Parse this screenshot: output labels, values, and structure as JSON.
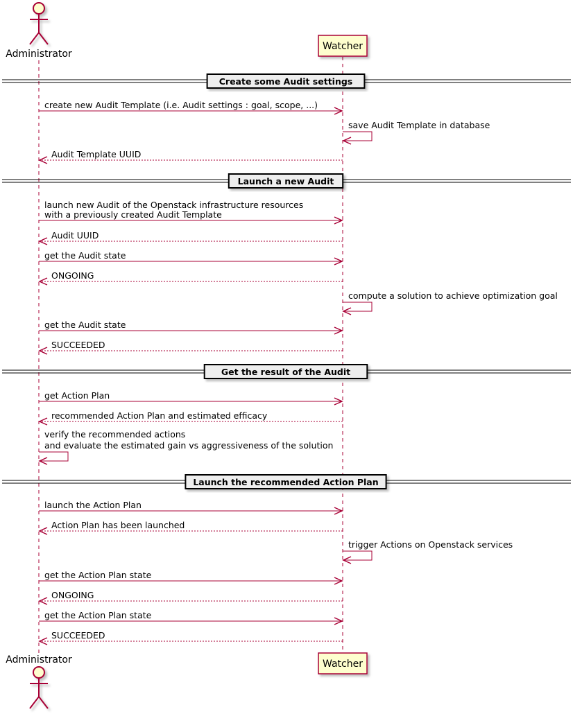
{
  "participants": [
    {
      "id": "admin",
      "label": "Administrator",
      "kind": "actor"
    },
    {
      "id": "watcher",
      "label": "Watcher",
      "kind": "participant"
    }
  ],
  "colors": {
    "line": "#A80036",
    "box_fill": "#FEFECE",
    "divider_fill": "#EEEEEE",
    "actor_fill": "#FEFECE"
  },
  "events": [
    {
      "type": "divider",
      "text": "Create some Audit settings"
    },
    {
      "type": "sync",
      "from": "admin",
      "to": "watcher",
      "lines": [
        "create new Audit Template (i.e. Audit settings : goal, scope, ...)"
      ]
    },
    {
      "type": "self",
      "from": "watcher",
      "lines": [
        "save Audit Template in database"
      ]
    },
    {
      "type": "return",
      "from": "watcher",
      "to": "admin",
      "lines": [
        "Audit Template UUID"
      ]
    },
    {
      "type": "divider",
      "text": "Launch a new Audit"
    },
    {
      "type": "sync",
      "from": "admin",
      "to": "watcher",
      "lines": [
        "launch new Audit of the Openstack infrastructure resources",
        "with a previously created Audit Template"
      ]
    },
    {
      "type": "return",
      "from": "watcher",
      "to": "admin",
      "lines": [
        "Audit UUID"
      ]
    },
    {
      "type": "sync",
      "from": "admin",
      "to": "watcher",
      "lines": [
        "get the Audit state"
      ]
    },
    {
      "type": "return",
      "from": "watcher",
      "to": "admin",
      "lines": [
        "ONGOING"
      ]
    },
    {
      "type": "self",
      "from": "watcher",
      "lines": [
        "compute a solution to achieve optimization goal"
      ]
    },
    {
      "type": "sync",
      "from": "admin",
      "to": "watcher",
      "lines": [
        "get the Audit state"
      ]
    },
    {
      "type": "return",
      "from": "watcher",
      "to": "admin",
      "lines": [
        "SUCCEEDED"
      ]
    },
    {
      "type": "divider",
      "text": "Get the result of the Audit"
    },
    {
      "type": "sync",
      "from": "admin",
      "to": "watcher",
      "lines": [
        "get Action Plan"
      ]
    },
    {
      "type": "return",
      "from": "watcher",
      "to": "admin",
      "lines": [
        "recommended Action Plan and estimated efficacy"
      ]
    },
    {
      "type": "self",
      "from": "admin",
      "lines": [
        "verify the recommended actions",
        "and evaluate the estimated gain vs aggressiveness of the solution"
      ]
    },
    {
      "type": "divider",
      "text": "Launch the recommended Action Plan"
    },
    {
      "type": "sync",
      "from": "admin",
      "to": "watcher",
      "lines": [
        "launch the Action Plan"
      ]
    },
    {
      "type": "return",
      "from": "watcher",
      "to": "admin",
      "lines": [
        "Action Plan has been launched"
      ]
    },
    {
      "type": "self",
      "from": "watcher",
      "lines": [
        "trigger Actions on Openstack services"
      ]
    },
    {
      "type": "sync",
      "from": "admin",
      "to": "watcher",
      "lines": [
        "get the Action Plan state"
      ]
    },
    {
      "type": "return",
      "from": "watcher",
      "to": "admin",
      "lines": [
        "ONGOING"
      ]
    },
    {
      "type": "sync",
      "from": "admin",
      "to": "watcher",
      "lines": [
        "get the Action Plan state"
      ]
    },
    {
      "type": "return",
      "from": "watcher",
      "to": "admin",
      "lines": [
        "SUCCEEDED"
      ]
    }
  ]
}
